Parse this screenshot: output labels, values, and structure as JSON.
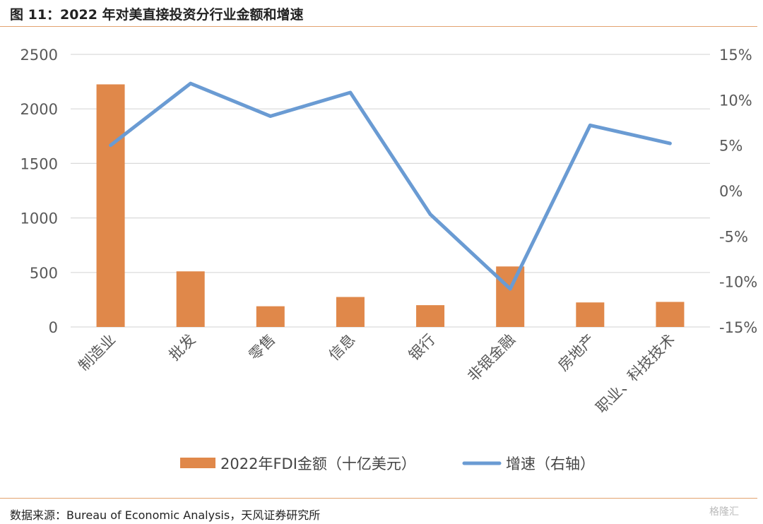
{
  "title": "图 11：2022 年对美直接投资分行业金额和增速",
  "source": "数据来源：Bureau of Economic Analysis，天风证券研究所",
  "watermark": "格隆汇",
  "colors": {
    "bar": "#e0884a",
    "line": "#6a9bd3",
    "grid": "#d9d9d9",
    "rule": "#e3a36f"
  },
  "chart_data": {
    "type": "bar+line",
    "categories": [
      "制造业",
      "批发",
      "零售",
      "信息",
      "银行",
      "非银金融",
      "房地产",
      "职业、科技技术"
    ],
    "series": [
      {
        "name": "2022年FDI金额（十亿美元）",
        "type": "bar",
        "axis": "left",
        "values": [
          2225,
          510,
          190,
          275,
          200,
          555,
          225,
          230
        ]
      },
      {
        "name": "增速（右轴）",
        "type": "line",
        "axis": "right",
        "values": [
          5.0,
          11.8,
          8.2,
          10.8,
          -2.6,
          -10.8,
          7.2,
          5.2
        ]
      }
    ],
    "left_axis": {
      "ylim": [
        0,
        2500
      ],
      "ticks": [
        0,
        500,
        1000,
        1500,
        2000,
        2500
      ]
    },
    "right_axis": {
      "ylim": [
        -15,
        15
      ],
      "ticks": [
        -15,
        -10,
        -5,
        0,
        5,
        10,
        15
      ],
      "tick_labels": [
        "-15%",
        "-10%",
        "-5%",
        "0%",
        "5%",
        "10%",
        "15%"
      ]
    },
    "grid": true,
    "legend": "bottom"
  }
}
